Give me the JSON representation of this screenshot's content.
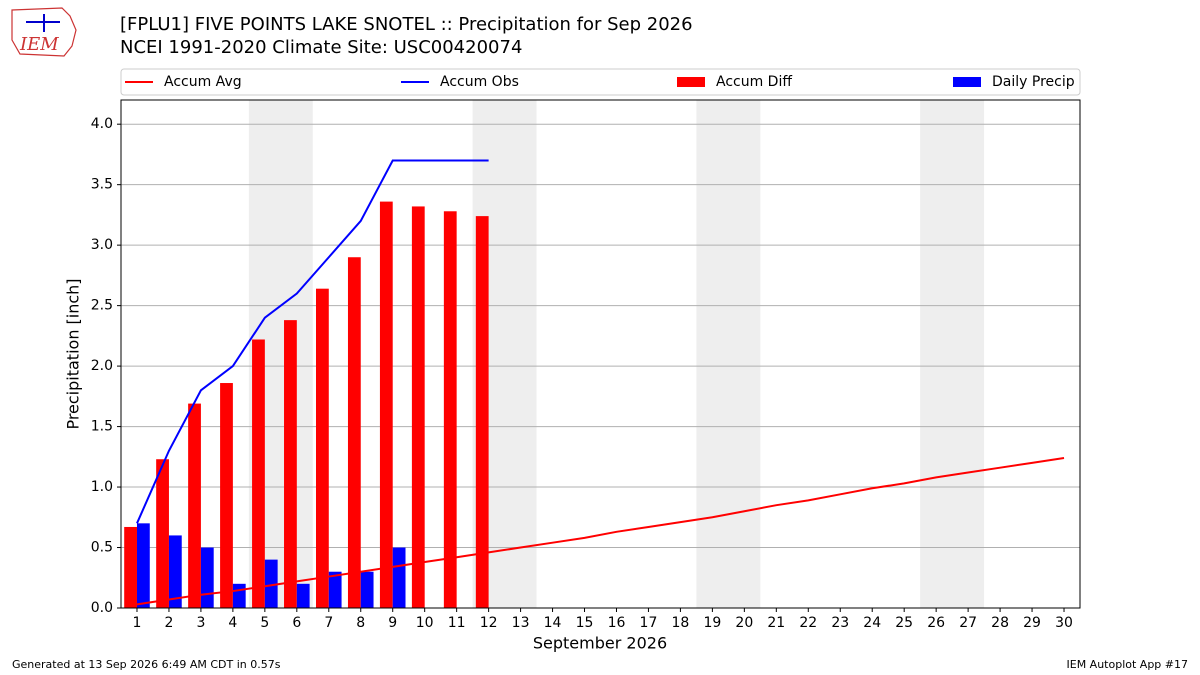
{
  "logo": {
    "text": "IEM"
  },
  "footer": {
    "left": "Generated at 13 Sep 2026 6:49 AM CDT in 0.57s",
    "right": "IEM Autoplot App #17"
  },
  "chart_data": {
    "type": "bar",
    "title": "[FPLU1] FIVE POINTS LAKE SNOTEL :: Precipitation for Sep 2026",
    "subtitle": "NCEI 1991-2020 Climate Site: USC00420074",
    "x_label": "September 2026",
    "y_label": "Precipitation [inch]",
    "x": [
      1,
      2,
      3,
      4,
      5,
      6,
      7,
      8,
      9,
      10,
      11,
      12,
      13,
      14,
      15,
      16,
      17,
      18,
      19,
      20,
      21,
      22,
      23,
      24,
      25,
      26,
      27,
      28,
      29,
      30
    ],
    "xlim": [
      0.5,
      30.5
    ],
    "xticks": [
      1,
      2,
      3,
      4,
      5,
      6,
      7,
      8,
      9,
      10,
      11,
      12,
      13,
      14,
      15,
      16,
      17,
      18,
      19,
      20,
      21,
      22,
      23,
      24,
      25,
      26,
      27,
      28,
      29,
      30
    ],
    "ylim": [
      0,
      4.2
    ],
    "yticks": [
      {
        "value": 0,
        "label": "0.0"
      },
      0.5,
      {
        "value": 1,
        "label": "1.0"
      },
      1.5,
      {
        "value": 2,
        "label": "2.0"
      },
      2.5,
      {
        "value": 3,
        "label": "3.0"
      },
      3.5,
      {
        "value": 4,
        "label": "4.0"
      }
    ],
    "grid": true,
    "shaded_ranges": [
      [
        4.5,
        6.5
      ],
      [
        11.5,
        13.5
      ],
      [
        18.5,
        20.5
      ],
      [
        25.5,
        27.5
      ]
    ],
    "shade_color": "#eeeeee",
    "series": [
      {
        "name": "Accum Avg",
        "type": "line",
        "color": "#ff0000",
        "values": [
          0.03,
          0.07,
          0.11,
          0.14,
          0.18,
          0.22,
          0.26,
          0.3,
          0.34,
          0.38,
          0.42,
          0.46,
          0.5,
          0.54,
          0.58,
          0.63,
          0.67,
          0.71,
          0.75,
          0.8,
          0.85,
          0.89,
          0.94,
          0.99,
          1.03,
          1.08,
          1.12,
          1.16,
          1.2,
          1.24
        ]
      },
      {
        "name": "Accum Obs",
        "type": "line",
        "color": "#0000ff",
        "values": [
          0.7,
          1.3,
          1.8,
          2.0,
          2.4,
          2.6,
          2.9,
          3.2,
          3.7,
          3.7,
          3.7,
          3.7,
          null,
          null,
          null,
          null,
          null,
          null,
          null,
          null,
          null,
          null,
          null,
          null,
          null,
          null,
          null,
          null,
          null,
          null
        ]
      },
      {
        "name": "Accum Diff",
        "type": "bar",
        "color": "#ff0000",
        "values": [
          0.67,
          1.23,
          1.69,
          1.86,
          2.22,
          2.38,
          2.64,
          2.9,
          3.36,
          3.32,
          3.28,
          3.24,
          null,
          null,
          null,
          null,
          null,
          null,
          null,
          null,
          null,
          null,
          null,
          null,
          null,
          null,
          null,
          null,
          null,
          null
        ]
      },
      {
        "name": "Daily Precip",
        "type": "bar",
        "color": "#0000ff",
        "values": [
          0.7,
          0.6,
          0.5,
          0.2,
          0.4,
          0.2,
          0.3,
          0.3,
          0.5,
          0,
          0,
          0,
          null,
          null,
          null,
          null,
          null,
          null,
          null,
          null,
          null,
          null,
          null,
          null,
          null,
          null,
          null,
          null,
          null,
          null
        ]
      }
    ]
  }
}
